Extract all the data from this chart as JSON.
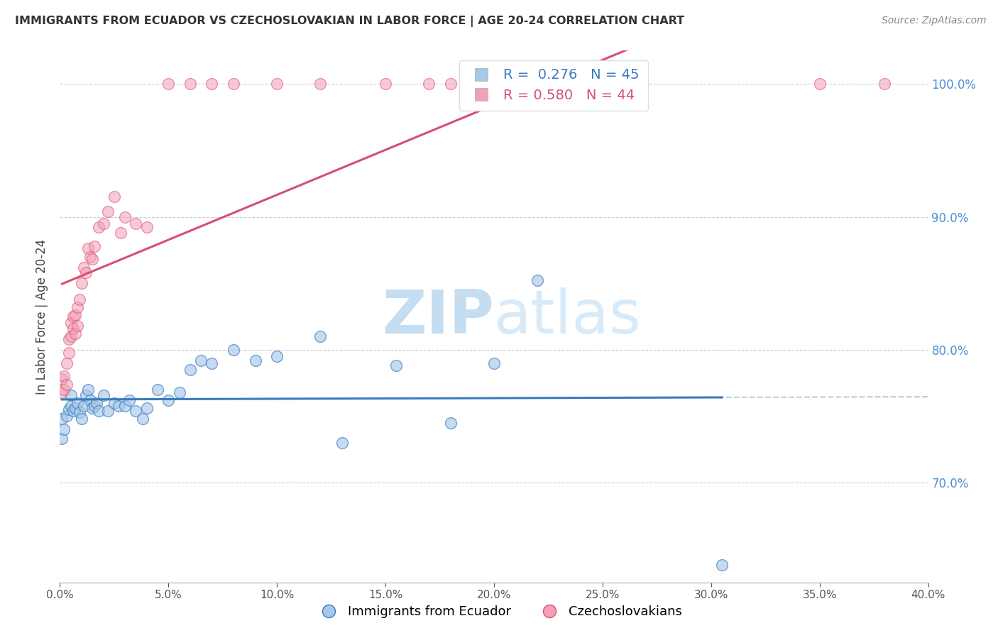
{
  "title": "IMMIGRANTS FROM ECUADOR VS CZECHOSLOVAKIAN IN LABOR FORCE | AGE 20-24 CORRELATION CHART",
  "source": "Source: ZipAtlas.com",
  "xlabel": "",
  "ylabel": "In Labor Force | Age 20-24",
  "legend_ecuador": "Immigrants from Ecuador",
  "legend_czech": "Czechoslovakians",
  "R_ecuador": 0.276,
  "N_ecuador": 45,
  "R_czech": 0.58,
  "N_czech": 44,
  "color_ecuador": "#a8c8e8",
  "color_czech": "#f4a0b8",
  "trendline_ecuador": "#3a7abf",
  "trendline_czech": "#d45070",
  "xlim": [
    0.0,
    0.4
  ],
  "ylim": [
    0.625,
    1.025
  ],
  "xticks": [
    0.0,
    0.05,
    0.1,
    0.15,
    0.2,
    0.25,
    0.3,
    0.35,
    0.4
  ],
  "yticks": [
    0.7,
    0.8,
    0.9,
    1.0
  ],
  "ecuador_x": [
    0.001,
    0.001,
    0.002,
    0.003,
    0.004,
    0.005,
    0.005,
    0.006,
    0.007,
    0.008,
    0.009,
    0.01,
    0.011,
    0.012,
    0.013,
    0.014,
    0.015,
    0.016,
    0.017,
    0.018,
    0.02,
    0.022,
    0.025,
    0.027,
    0.03,
    0.032,
    0.035,
    0.038,
    0.04,
    0.045,
    0.05,
    0.055,
    0.06,
    0.065,
    0.07,
    0.08,
    0.09,
    0.1,
    0.12,
    0.13,
    0.155,
    0.18,
    0.2,
    0.22,
    0.305
  ],
  "ecuador_y": [
    0.748,
    0.733,
    0.74,
    0.75,
    0.755,
    0.766,
    0.758,
    0.754,
    0.756,
    0.76,
    0.753,
    0.748,
    0.758,
    0.766,
    0.77,
    0.762,
    0.756,
    0.758,
    0.76,
    0.754,
    0.766,
    0.754,
    0.76,
    0.758,
    0.758,
    0.762,
    0.754,
    0.748,
    0.756,
    0.77,
    0.762,
    0.768,
    0.785,
    0.792,
    0.79,
    0.8,
    0.792,
    0.795,
    0.81,
    0.73,
    0.788,
    0.745,
    0.79,
    0.852,
    0.638
  ],
  "czech_x": [
    0.001,
    0.001,
    0.002,
    0.002,
    0.003,
    0.003,
    0.004,
    0.004,
    0.005,
    0.005,
    0.006,
    0.006,
    0.007,
    0.007,
    0.008,
    0.008,
    0.009,
    0.01,
    0.011,
    0.012,
    0.013,
    0.014,
    0.015,
    0.016,
    0.018,
    0.02,
    0.022,
    0.025,
    0.028,
    0.03,
    0.035,
    0.04,
    0.05,
    0.06,
    0.07,
    0.08,
    0.1,
    0.12,
    0.15,
    0.17,
    0.18,
    0.2,
    0.35,
    0.38
  ],
  "czech_y": [
    0.768,
    0.778,
    0.77,
    0.78,
    0.774,
    0.79,
    0.798,
    0.808,
    0.82,
    0.81,
    0.825,
    0.816,
    0.812,
    0.826,
    0.818,
    0.832,
    0.838,
    0.85,
    0.862,
    0.858,
    0.876,
    0.87,
    0.868,
    0.878,
    0.892,
    0.895,
    0.904,
    0.915,
    0.888,
    0.9,
    0.895,
    0.892,
    1.0,
    1.0,
    1.0,
    1.0,
    1.0,
    1.0,
    1.0,
    1.0,
    1.0,
    1.0,
    1.0,
    1.0
  ],
  "background_color": "#ffffff",
  "watermark_zip": "ZIP",
  "watermark_atlas": "atlas",
  "watermark_color": "#cce0f5"
}
